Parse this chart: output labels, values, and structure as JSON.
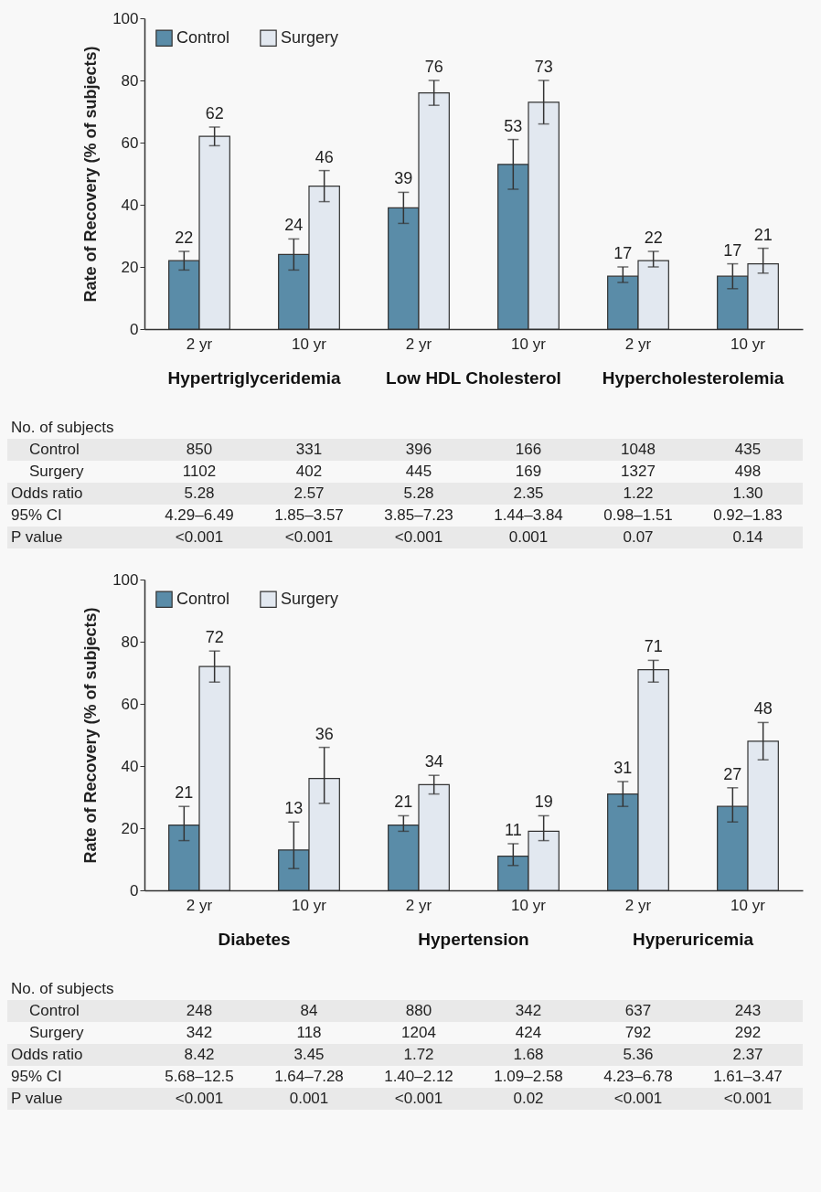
{
  "chart_data": [
    {
      "type": "bar",
      "ylabel": "Rate of Recovery (% of subjects)",
      "categories": [
        "2 yr",
        "10 yr",
        "2 yr",
        "10 yr",
        "2 yr",
        "10 yr"
      ],
      "series": [
        {
          "name": "Control",
          "color": "#5a8ca8",
          "values": [
            22,
            24,
            39,
            53,
            17,
            17
          ],
          "errors": [
            [
              19,
              25
            ],
            [
              19,
              29
            ],
            [
              34,
              44
            ],
            [
              45,
              61
            ],
            [
              15,
              20
            ],
            [
              13,
              21
            ]
          ]
        },
        {
          "name": "Surgery",
          "color": "#e2e8f0",
          "values": [
            62,
            46,
            76,
            73,
            22,
            21
          ],
          "errors": [
            [
              59,
              65
            ],
            [
              41,
              51
            ],
            [
              72,
              80
            ],
            [
              66,
              80
            ],
            [
              20,
              25
            ],
            [
              18,
              26
            ]
          ]
        }
      ],
      "ylim": [
        0,
        100
      ],
      "yticks": [
        0,
        20,
        40,
        60,
        80,
        100
      ],
      "data_labels": true,
      "legend": "top left",
      "annotations": [
        "Hypertriglyceridemia",
        "Low HDL Cholesterol",
        "Hypercholesterolemia",
        "No. of subjects",
        "Control",
        "850",
        "331",
        "396",
        "166",
        "1048",
        "435",
        "Surgery",
        "1102",
        "402",
        "445",
        "169",
        "1327",
        "498",
        "Odds ratio",
        "5.28",
        "2.57",
        "5.28",
        "2.35",
        "1.22",
        "1.30",
        "95% CI",
        "4.29–6.49",
        "1.85–3.57",
        "3.85–7.23",
        "1.44–3.84",
        "0.98–1.51",
        "0.92–1.83",
        "P value",
        "<0.001",
        "<0.001",
        "<0.001",
        "0.001",
        "0.07",
        "0.14"
      ]
    },
    {
      "type": "bar",
      "ylabel": "Rate of Recovery (% of subjects)",
      "categories": [
        "2 yr",
        "10 yr",
        "2 yr",
        "10 yr",
        "2 yr",
        "10 yr"
      ],
      "series": [
        {
          "name": "Control",
          "color": "#5a8ca8",
          "values": [
            21,
            13,
            21,
            11,
            31,
            27
          ],
          "errors": [
            [
              16,
              27
            ],
            [
              7,
              22
            ],
            [
              19,
              24
            ],
            [
              8,
              15
            ],
            [
              27,
              35
            ],
            [
              22,
              33
            ]
          ]
        },
        {
          "name": "Surgery",
          "color": "#e2e8f0",
          "values": [
            72,
            36,
            34,
            19,
            71,
            48
          ],
          "errors": [
            [
              67,
              77
            ],
            [
              28,
              46
            ],
            [
              31,
              37
            ],
            [
              16,
              24
            ],
            [
              67,
              74
            ],
            [
              42,
              54
            ]
          ]
        }
      ],
      "ylim": [
        0,
        100
      ],
      "yticks": [
        0,
        20,
        40,
        60,
        80,
        100
      ],
      "data_labels": true,
      "legend": "top left",
      "annotations": [
        "Diabetes",
        "Hypertension",
        "Hyperuricemia",
        "No. of subjects",
        "Control",
        "248",
        "84",
        "880",
        "342",
        "637",
        "243",
        "Surgery",
        "342",
        "118",
        "1204",
        "424",
        "792",
        "292",
        "Odds ratio",
        "8.42",
        "3.45",
        "1.72",
        "1.68",
        "5.36",
        "2.37",
        "95% CI",
        "5.68–12.5",
        "1.64–7.28",
        "1.40–2.12",
        "1.09–2.58",
        "4.23–6.78",
        "1.61–3.47",
        "P value",
        "<0.001",
        "0.001",
        "<0.001",
        "0.02",
        "<0.001",
        "<0.001"
      ]
    }
  ]
}
